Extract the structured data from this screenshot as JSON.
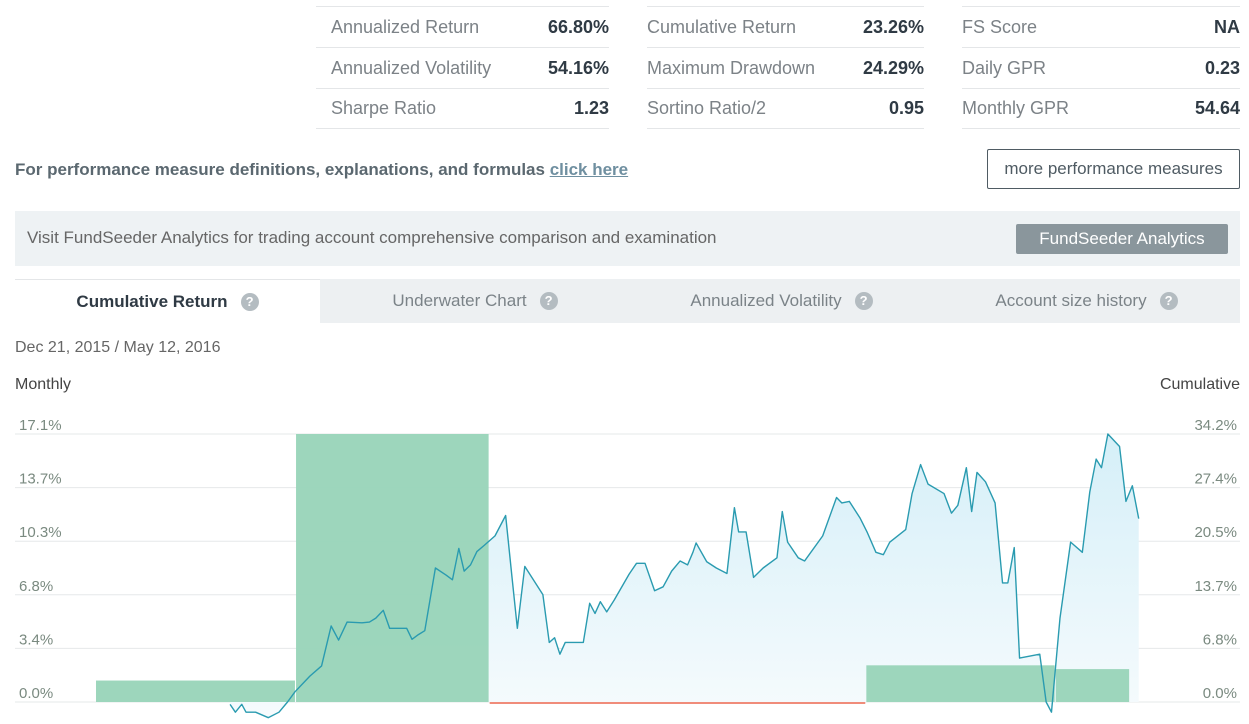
{
  "metrics": [
    [
      {
        "label": "Annualized Return",
        "value": "66.80%"
      },
      {
        "label": "Annualized Volatility",
        "value": "54.16%"
      },
      {
        "label": "Sharpe Ratio",
        "value": "1.23"
      }
    ],
    [
      {
        "label": "Cumulative Return",
        "value": "23.26%"
      },
      {
        "label": "Maximum Drawdown",
        "value": "24.29%"
      },
      {
        "label": "Sortino Ratio/2",
        "value": "0.95"
      }
    ],
    [
      {
        "label": "FS Score",
        "value": "NA"
      },
      {
        "label": "Daily GPR",
        "value": "0.23"
      },
      {
        "label": "Monthly GPR",
        "value": "54.64"
      }
    ]
  ],
  "definitions": {
    "text": "For performance measure definitions, explanations, and formulas ",
    "link": "click here"
  },
  "more_button": "more performance measures",
  "banner": {
    "text": "Visit FundSeeder Analytics for trading account comprehensive comparison and examination",
    "button": "FundSeeder Analytics"
  },
  "tabs": [
    {
      "label": "Cumulative Return",
      "active": true
    },
    {
      "label": "Underwater Chart",
      "active": false
    },
    {
      "label": "Annualized Volatility",
      "active": false
    },
    {
      "label": "Account size history",
      "active": false
    }
  ],
  "date_range": "Dec 21, 2015 / May 12, 2016",
  "chart_data": {
    "type": "bar+area",
    "left_axis_label": "Monthly",
    "right_axis_label": "Cumulative",
    "left_ticks": [
      "0.0%",
      "3.4%",
      "6.8%",
      "10.3%",
      "13.7%",
      "17.1%"
    ],
    "right_ticks": [
      "0.0%",
      "6.8%",
      "13.7%",
      "20.5%",
      "27.4%",
      "34.2%"
    ],
    "left_range": [
      0,
      17.1
    ],
    "right_range": [
      0,
      34.2
    ],
    "x_range": [
      0,
      1
    ],
    "colors": {
      "bar": "#98d4b8",
      "negative_bar": "#f08c7a",
      "line": "#2a9bb0",
      "area": "#e3f5fb",
      "grid": "#e6e8ea"
    },
    "monthly_bars": [
      {
        "x_start": 0.0,
        "x_end": 0.187,
        "value": 1.37
      },
      {
        "x_start": 0.188,
        "x_end": 0.369,
        "value": 17.1
      },
      {
        "x_start": 0.37,
        "x_end": 0.723,
        "value": -0.04
      },
      {
        "x_start": 0.724,
        "x_end": 0.901,
        "value": 2.34
      },
      {
        "x_start": 0.902,
        "x_end": 0.971,
        "value": 2.1
      }
    ],
    "cumulative_series": [
      [
        0.126,
        -0.3
      ],
      [
        0.131,
        -1.3
      ],
      [
        0.137,
        -0.3
      ],
      [
        0.141,
        -1.3
      ],
      [
        0.15,
        -1.3
      ],
      [
        0.162,
        -2.0
      ],
      [
        0.172,
        -1.3
      ],
      [
        0.18,
        0.0
      ],
      [
        0.187,
        1.3
      ],
      [
        0.201,
        3.3
      ],
      [
        0.212,
        4.6
      ],
      [
        0.221,
        9.7
      ],
      [
        0.228,
        7.9
      ],
      [
        0.236,
        10.2
      ],
      [
        0.25,
        10.1
      ],
      [
        0.257,
        10.2
      ],
      [
        0.263,
        10.7
      ],
      [
        0.27,
        11.7
      ],
      [
        0.276,
        9.4
      ],
      [
        0.287,
        9.4
      ],
      [
        0.292,
        9.4
      ],
      [
        0.297,
        8.0
      ],
      [
        0.303,
        8.6
      ],
      [
        0.309,
        9.1
      ],
      [
        0.319,
        17.1
      ],
      [
        0.329,
        16.2
      ],
      [
        0.335,
        15.6
      ],
      [
        0.341,
        19.6
      ],
      [
        0.346,
        16.7
      ],
      [
        0.352,
        17.5
      ],
      [
        0.358,
        19.2
      ],
      [
        0.365,
        20.0
      ],
      [
        0.375,
        21.2
      ],
      [
        0.385,
        23.8
      ],
      [
        0.391,
        15.9
      ],
      [
        0.396,
        9.4
      ],
      [
        0.403,
        17.3
      ],
      [
        0.42,
        13.7
      ],
      [
        0.426,
        7.6
      ],
      [
        0.431,
        8.2
      ],
      [
        0.436,
        6.1
      ],
      [
        0.441,
        7.6
      ],
      [
        0.458,
        7.6
      ],
      [
        0.464,
        12.6
      ],
      [
        0.469,
        11.3
      ],
      [
        0.474,
        12.8
      ],
      [
        0.48,
        11.5
      ],
      [
        0.487,
        13.0
      ],
      [
        0.501,
        16.3
      ],
      [
        0.508,
        17.7
      ],
      [
        0.516,
        17.7
      ],
      [
        0.525,
        14.2
      ],
      [
        0.533,
        14.7
      ],
      [
        0.541,
        16.7
      ],
      [
        0.549,
        18.0
      ],
      [
        0.556,
        17.5
      ],
      [
        0.561,
        19.1
      ],
      [
        0.564,
        20.3
      ],
      [
        0.574,
        17.9
      ],
      [
        0.583,
        17.1
      ],
      [
        0.593,
        16.4
      ],
      [
        0.6,
        24.8
      ],
      [
        0.604,
        21.7
      ],
      [
        0.611,
        21.7
      ],
      [
        0.618,
        15.9
      ],
      [
        0.627,
        17.1
      ],
      [
        0.64,
        18.4
      ],
      [
        0.645,
        24.3
      ],
      [
        0.65,
        20.4
      ],
      [
        0.66,
        18.4
      ],
      [
        0.666,
        18.0
      ],
      [
        0.683,
        21.2
      ],
      [
        0.696,
        26.1
      ],
      [
        0.701,
        25.4
      ],
      [
        0.708,
        25.6
      ],
      [
        0.718,
        23.5
      ],
      [
        0.725,
        21.6
      ],
      [
        0.733,
        19.1
      ],
      [
        0.74,
        18.8
      ],
      [
        0.746,
        20.4
      ],
      [
        0.761,
        22.0
      ],
      [
        0.767,
        26.6
      ],
      [
        0.775,
        30.3
      ],
      [
        0.782,
        27.8
      ],
      [
        0.797,
        26.6
      ],
      [
        0.804,
        24.1
      ],
      [
        0.81,
        25.1
      ],
      [
        0.818,
        29.9
      ],
      [
        0.823,
        24.3
      ],
      [
        0.828,
        29.3
      ],
      [
        0.836,
        28.1
      ],
      [
        0.845,
        25.4
      ],
      [
        0.852,
        15.2
      ],
      [
        0.857,
        15.2
      ],
      [
        0.863,
        19.7
      ],
      [
        0.868,
        5.6
      ],
      [
        0.887,
        6.1
      ],
      [
        0.893,
        0.0
      ],
      [
        0.898,
        -1.3
      ],
      [
        0.906,
        10.7
      ],
      [
        0.916,
        20.4
      ],
      [
        0.927,
        19.1
      ],
      [
        0.934,
        26.8
      ],
      [
        0.94,
        31.0
      ],
      [
        0.945,
        29.9
      ],
      [
        0.951,
        34.2
      ],
      [
        0.962,
        32.6
      ],
      [
        0.968,
        25.6
      ],
      [
        0.974,
        27.6
      ],
      [
        0.98,
        23.4
      ]
    ]
  }
}
